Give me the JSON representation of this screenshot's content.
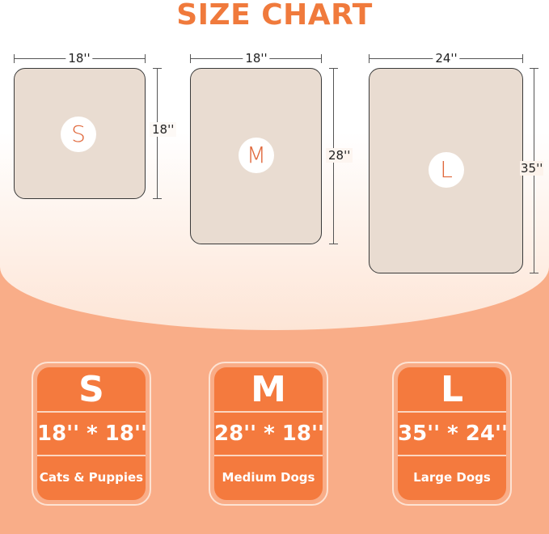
{
  "title": "SIZE CHART",
  "sizes": [
    {
      "letter": "S",
      "width": "18''",
      "length": "18''",
      "dims": "18'' * 18''",
      "label": "Cats & Puppies"
    },
    {
      "letter": "M",
      "width": "18''",
      "length": "28''",
      "dims": "28'' * 18''",
      "label": "Medium Dogs"
    },
    {
      "letter": "L",
      "width": "24''",
      "length": "35''",
      "dims": "35'' * 24''",
      "label": "Large Dogs"
    }
  ],
  "colors": {
    "accent": "#f47a3e",
    "mat": "#e9dcd1",
    "background": "#f9ad88"
  }
}
